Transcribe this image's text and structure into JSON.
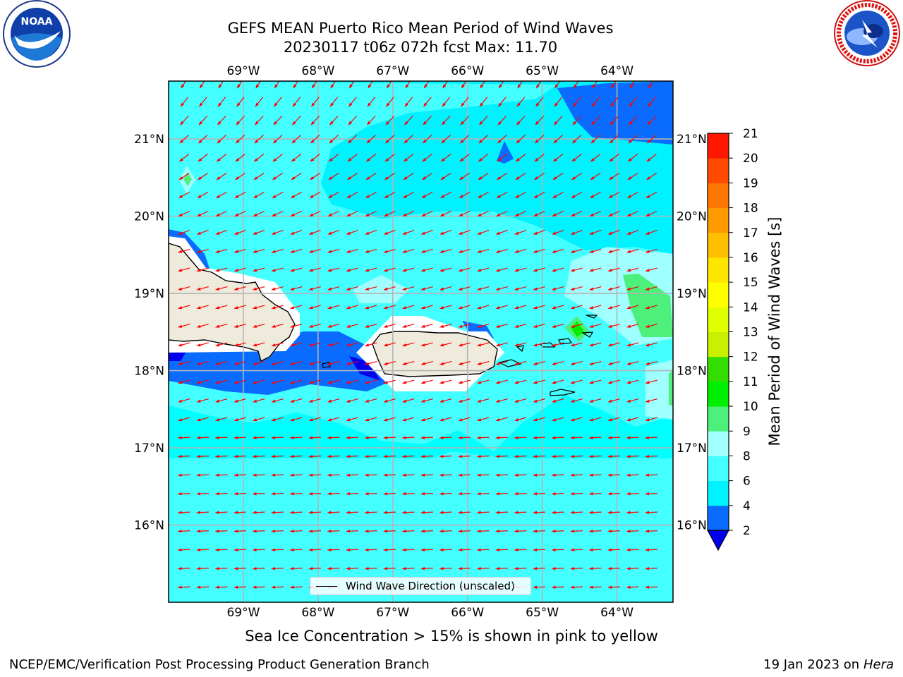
{
  "header": {
    "title_line1": "GEFS MEAN Puerto Rico Mean Period of Wind Waves",
    "title_line2": "20230117 t06z 072h fcst   Max: 11.70"
  },
  "logos": {
    "left": {
      "name": "noaa-logo",
      "text": "NOAA",
      "ring_text": "NATIONAL OCEANIC AND ATMOSPHERIC ADMINISTRATION · U.S. DEPARTMENT OF COMMERCE"
    },
    "right": {
      "name": "nws-logo",
      "ring_text": "NATIONAL WEATHER SERVICE"
    }
  },
  "map": {
    "lon_ticks": [
      "69°W",
      "68°W",
      "67°W",
      "66°W",
      "65°W",
      "64°W"
    ],
    "lat_ticks": [
      "21°N",
      "20°N",
      "19°N",
      "18°N",
      "17°N",
      "16°N"
    ],
    "lon_values": [
      -69,
      -68,
      -67,
      -66,
      -65,
      -64
    ],
    "lat_values": [
      21,
      20,
      19,
      18,
      17,
      16
    ],
    "extent": {
      "lon_min": -70.0,
      "lon_max": -63.25,
      "lat_min": 15.0,
      "lat_max": 21.75
    },
    "land_color": "#efebdc",
    "ocean_base_color": "#00ffff",
    "arrow_color": "#ff0000",
    "legend_label": "Wind Wave Direction (unscaled)"
  },
  "colorbar": {
    "label": "Mean Period of Wind Waves [s]",
    "tick_labels": [
      "2",
      "4",
      "6",
      "8",
      "9",
      "10",
      "11",
      "12",
      "13",
      "14",
      "15",
      "16",
      "17",
      "18",
      "19",
      "20",
      "21"
    ],
    "bins": [
      {
        "lo": 2,
        "hi": 4,
        "color": "#0a6cff"
      },
      {
        "lo": 4,
        "hi": 6,
        "color": "#00f2ff"
      },
      {
        "lo": 6,
        "hi": 8,
        "color": "#44ffff"
      },
      {
        "lo": 8,
        "hi": 9,
        "color": "#a0ffff"
      },
      {
        "lo": 9,
        "hi": 10,
        "color": "#4cf07a"
      },
      {
        "lo": 10,
        "hi": 11,
        "color": "#00ee00"
      },
      {
        "lo": 11,
        "hi": 12,
        "color": "#33dd00"
      },
      {
        "lo": 12,
        "hi": 13,
        "color": "#c8f000"
      },
      {
        "lo": 13,
        "hi": 14,
        "color": "#e0ff00"
      },
      {
        "lo": 14,
        "hi": 15,
        "color": "#ffff00"
      },
      {
        "lo": 15,
        "hi": 16,
        "color": "#ffe600"
      },
      {
        "lo": 16,
        "hi": 17,
        "color": "#ffbf00"
      },
      {
        "lo": 17,
        "hi": 18,
        "color": "#ff9900"
      },
      {
        "lo": 18,
        "hi": 19,
        "color": "#ff7700"
      },
      {
        "lo": 19,
        "hi": 20,
        "color": "#ff4a00"
      },
      {
        "lo": 20,
        "hi": 21,
        "color": "#ff1800"
      }
    ],
    "under_color": "#0000ee"
  },
  "subtitle": "Sea Ice Concentration > 15% is shown in pink to yellow",
  "footer": {
    "left": "NCEP/EMC/Verification Post Processing Product Generation Branch",
    "right_prefix": "19 Jan 2023 on ",
    "right_host": "Hera"
  }
}
